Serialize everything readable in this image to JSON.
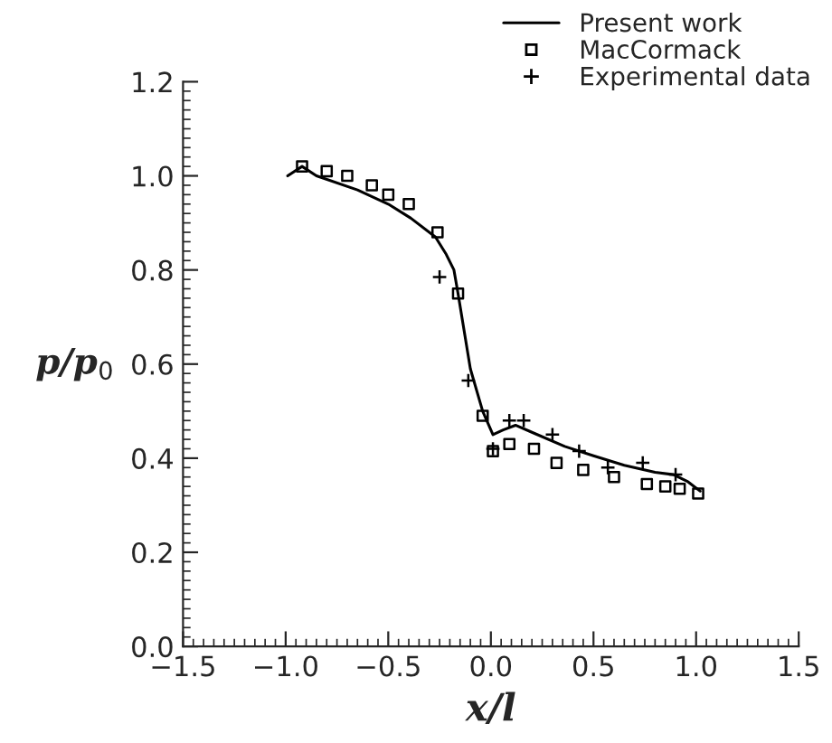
{
  "chart_data": {
    "type": "line",
    "xlabel": "x/l",
    "ylabel": "p/p$_{0}$",
    "xlim": [
      -1.5,
      1.5
    ],
    "xticks": [
      {
        "value": -1.5,
        "label": "−1.5"
      },
      {
        "value": -1.0,
        "label": "−1.0"
      },
      {
        "value": -0.5,
        "label": "−0.5"
      },
      {
        "value": 0.0,
        "label": "0.0"
      },
      {
        "value": 0.5,
        "label": "0.5"
      },
      {
        "value": 1.0,
        "label": "1.0"
      },
      {
        "value": 1.5,
        "label": "1.5"
      }
    ],
    "ylim": [
      0,
      1.2
    ],
    "yticks": [
      {
        "value": 0,
        "label": "0.0"
      },
      {
        "value": 0.2,
        "label": "0.2"
      },
      {
        "value": 0.4,
        "label": "0.4"
      },
      {
        "value": 0.6,
        "label": "0.6"
      },
      {
        "value": 0.8,
        "label": "0.8"
      },
      {
        "value": 1.0,
        "label": "1.0"
      },
      {
        "value": 1.2,
        "label": "1.2"
      }
    ],
    "grid": false,
    "legend": "top right",
    "series": [
      {
        "name": "Present work",
        "color": "#000000",
        "marker": "none",
        "line_style": "solid",
        "x": [
          -0.99,
          -0.92,
          -0.85,
          -0.65,
          -0.5,
          -0.39,
          -0.27,
          -0.22,
          -0.18,
          -0.16,
          -0.1,
          -0.04,
          0.01,
          0.06,
          0.12,
          0.2,
          0.36,
          0.5,
          0.65,
          0.8,
          0.89,
          0.96,
          1.02
        ],
        "values": [
          1.0,
          1.02,
          1.0,
          0.97,
          0.94,
          0.91,
          0.87,
          0.835,
          0.8,
          0.75,
          0.59,
          0.5,
          0.45,
          0.46,
          0.47,
          0.455,
          0.425,
          0.405,
          0.385,
          0.37,
          0.365,
          0.35,
          0.33
        ]
      },
      {
        "name": "MacCormack",
        "type": "scatter",
        "color": "#000000",
        "marker": "square",
        "x": [
          -0.92,
          -0.8,
          -0.7,
          -0.58,
          -0.5,
          -0.4,
          -0.26,
          -0.16,
          -0.04,
          0.01,
          0.09,
          0.21,
          0.32,
          0.45,
          0.6,
          0.76,
          0.85,
          0.92,
          1.01
        ],
        "values": [
          1.02,
          1.01,
          1.0,
          0.98,
          0.96,
          0.94,
          0.88,
          0.75,
          0.49,
          0.415,
          0.43,
          0.42,
          0.39,
          0.375,
          0.36,
          0.345,
          0.34,
          0.335,
          0.325
        ]
      },
      {
        "name": "Experimental data",
        "type": "scatter",
        "color": "#000000",
        "marker": "cross",
        "x": [
          -0.25,
          -0.11,
          0.01,
          0.09,
          0.16,
          0.3,
          0.43,
          0.57,
          0.74,
          0.9
        ],
        "values": [
          0.785,
          0.565,
          0.42,
          0.48,
          0.48,
          0.45,
          0.415,
          0.38,
          0.39,
          0.365
        ]
      }
    ]
  }
}
